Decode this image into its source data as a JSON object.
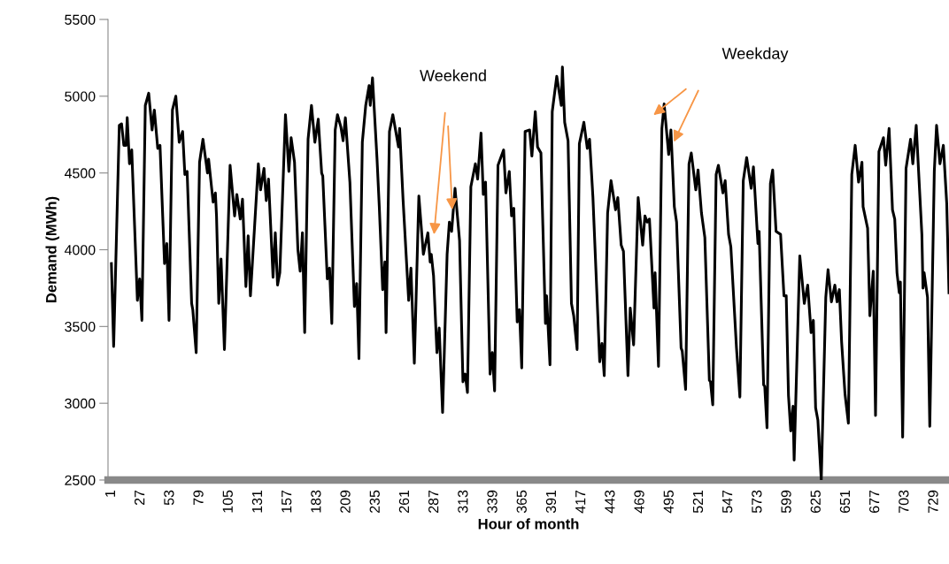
{
  "chart_data": {
    "type": "line",
    "xlabel": "Hour of month",
    "ylabel": "Demand (MWh)",
    "xlim": [
      -2,
      742
    ],
    "ylim": [
      2500,
      5500
    ],
    "xticks": [
      1,
      27,
      53,
      79,
      105,
      131,
      157,
      183,
      209,
      235,
      261,
      287,
      313,
      339,
      365,
      391,
      417,
      443,
      469,
      495,
      521,
      547,
      573,
      599,
      625,
      651,
      677,
      703,
      729
    ],
    "yticks": [
      2500,
      3000,
      3500,
      4000,
      4500,
      5000,
      5500
    ],
    "annotations": [
      "Weekend",
      "Weekday"
    ],
    "series": [
      {
        "color": "#000000",
        "x": [
          1,
          3,
          8,
          10,
          12,
          14,
          15,
          17,
          19,
          24,
          26,
          28,
          31,
          34,
          37,
          39,
          42,
          44,
          48,
          50,
          52,
          55,
          58,
          61,
          64,
          66,
          68,
          72,
          73,
          76,
          79,
          82,
          86,
          87,
          91,
          93,
          94,
          96,
          98,
          101,
          106,
          110,
          112,
          115,
          117,
          120,
          122,
          124,
          131,
          133,
          136,
          138,
          140,
          144,
          146,
          148,
          150,
          155,
          158,
          160,
          163,
          166,
          168,
          170,
          172,
          175,
          178,
          181,
          184,
          187,
          188,
          192,
          194,
          196,
          199,
          201,
          204,
          206,
          208,
          212,
          216,
          218,
          220,
          223,
          226,
          229,
          230,
          232,
          236,
          238,
          241,
          243,
          244,
          247,
          250,
          255,
          256,
          259,
          264,
          266,
          269,
          273,
          277,
          281,
          283,
          284,
          286,
          289,
          291,
          294,
          298,
          300,
          302,
          305,
          309,
          312,
          314,
          316,
          319,
          323,
          325,
          328,
          330,
          332,
          336,
          338,
          340,
          343,
          345,
          348,
          350,
          353,
          355,
          357,
          360,
          362,
          364,
          367,
          371,
          373,
          376,
          378,
          381,
          385,
          386,
          389,
          391,
          395,
          399,
          400,
          402,
          405,
          408,
          410,
          413,
          415,
          417,
          419,
          422,
          424,
          427,
          433,
          435,
          437,
          440,
          443,
          447,
          449,
          452,
          454,
          458,
          460,
          463,
          467,
          471,
          473,
          475,
          477,
          481,
          482,
          485,
          488,
          490,
          494,
          496,
          499,
          501,
          505,
          506,
          509,
          512,
          514,
          518,
          520,
          523,
          526,
          530,
          531,
          533,
          536,
          538,
          542,
          544,
          547,
          549,
          554,
          557,
          560,
          563,
          567,
          569,
          572,
          573,
          574,
          578,
          579,
          581,
          584,
          586,
          589,
          593,
          596,
          598,
          600,
          602,
          604,
          605,
          610,
          614,
          617,
          620,
          622,
          624,
          626,
          629,
          633,
          635,
          638,
          641,
          643,
          645,
          647,
          650,
          653,
          656,
          659,
          662,
          665,
          666,
          670,
          672,
          675,
          677,
          680,
          684,
          686,
          689,
          692,
          694,
          696,
          698,
          699,
          701,
          704,
          708,
          710,
          713,
          718,
          719,
          720,
          723,
          725,
          729,
          731,
          734,
          737,
          740,
          742
        ],
        "values": [
          3910,
          3370,
          4810,
          4820,
          4680,
          4680,
          4860,
          4560,
          4650,
          3670,
          3810,
          3540,
          4940,
          5020,
          4780,
          4910,
          4660,
          4680,
          3910,
          4040,
          3540,
          4910,
          5000,
          4700,
          4770,
          4490,
          4510,
          3650,
          3610,
          3330,
          4570,
          4720,
          4500,
          4590,
          4310,
          4370,
          4220,
          3650,
          3940,
          3350,
          4550,
          4220,
          4360,
          4200,
          4330,
          3760,
          4090,
          3700,
          4560,
          4390,
          4530,
          4320,
          4460,
          3820,
          4110,
          3770,
          3850,
          4880,
          4510,
          4730,
          4570,
          4000,
          3860,
          4110,
          3460,
          4720,
          4940,
          4700,
          4850,
          4500,
          4480,
          3810,
          3880,
          3520,
          4780,
          4880,
          4800,
          4710,
          4860,
          4440,
          3630,
          3780,
          3290,
          4700,
          4940,
          5070,
          4940,
          5120,
          4590,
          4280,
          3740,
          3920,
          3460,
          4770,
          4880,
          4670,
          4790,
          4330,
          3670,
          3880,
          3260,
          4350,
          3970,
          4110,
          3920,
          3970,
          3830,
          3330,
          3490,
          2940,
          3970,
          4180,
          4120,
          4400,
          4060,
          3140,
          3190,
          3070,
          4410,
          4560,
          4460,
          4760,
          4360,
          4440,
          3190,
          3330,
          3080,
          4550,
          4590,
          4650,
          4370,
          4510,
          4220,
          4270,
          3530,
          3610,
          3230,
          4770,
          4780,
          4610,
          4900,
          4670,
          4630,
          3520,
          3700,
          3250,
          4900,
          5130,
          4940,
          5190,
          4830,
          4710,
          3650,
          3570,
          3350,
          4690,
          4760,
          4830,
          4660,
          4720,
          4340,
          3270,
          3390,
          3180,
          4240,
          4450,
          4260,
          4340,
          4030,
          3990,
          3180,
          3620,
          3380,
          4340,
          4030,
          4220,
          4180,
          4200,
          3620,
          3850,
          3240,
          4790,
          4950,
          4620,
          4780,
          4280,
          4180,
          3360,
          3340,
          3090,
          4560,
          4630,
          4390,
          4520,
          4240,
          4080,
          3150,
          3140,
          2990,
          4490,
          4550,
          4370,
          4450,
          4100,
          4020,
          3360,
          3040,
          4450,
          4600,
          4400,
          4540,
          4160,
          4040,
          4120,
          3120,
          3110,
          2840,
          4430,
          4520,
          4120,
          4100,
          3700,
          3700,
          3050,
          2820,
          2980,
          2630,
          3960,
          3650,
          3770,
          3460,
          3540,
          2970,
          2890,
          2500,
          3690,
          3870,
          3660,
          3770,
          3660,
          3740,
          3400,
          3060,
          2870,
          4490,
          4680,
          4440,
          4570,
          4280,
          4140,
          3570,
          3860,
          2920,
          4640,
          4730,
          4550,
          4790,
          4260,
          4200,
          3850,
          3720,
          3790,
          2780,
          4530,
          4720,
          4560,
          4810,
          4100,
          3750,
          3850,
          3690,
          2850,
          4510,
          4810,
          4560,
          4680,
          4300,
          3720
        ]
      }
    ]
  }
}
